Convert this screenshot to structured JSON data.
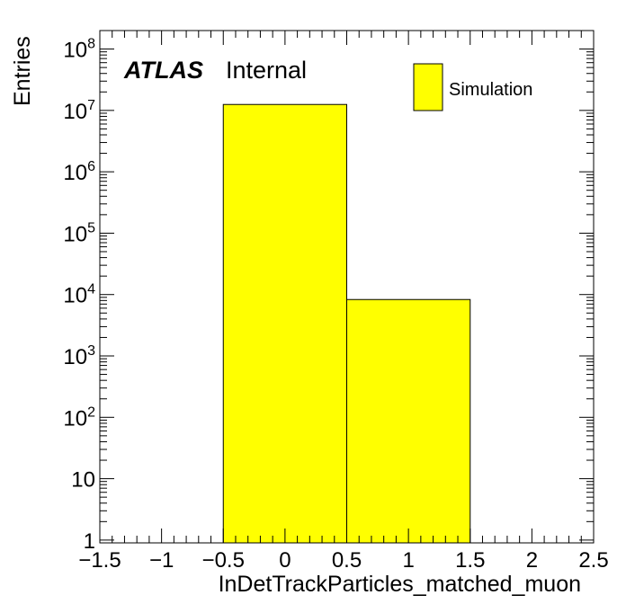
{
  "chart_data": {
    "type": "bar",
    "histogram": true,
    "bins": [
      {
        "low": -0.5,
        "high": 0.5,
        "value": 12500000
      },
      {
        "low": 0.5,
        "high": 1.5,
        "value": 8300
      }
    ],
    "xlabel": "InDetTrackParticles_matched_muon",
    "ylabel": "Entries",
    "xlim": [
      -1.5,
      2.5
    ],
    "ylim": [
      0.9,
      200000000
    ],
    "yscale": "log",
    "xticks": [
      -1.5,
      -1,
      -0.5,
      0,
      0.5,
      1,
      1.5,
      2,
      2.5
    ],
    "xtick_labels": [
      "−1.5",
      "−1",
      "−0.5",
      "0",
      "0.5",
      "1",
      "1.5",
      "2",
      "2.5"
    ],
    "yticks": [
      {
        "value": 1,
        "base": "1",
        "exp": ""
      },
      {
        "value": 10,
        "base": "10",
        "exp": ""
      },
      {
        "value": 100,
        "base": "10",
        "exp": "2"
      },
      {
        "value": 1000,
        "base": "10",
        "exp": "3"
      },
      {
        "value": 10000,
        "base": "10",
        "exp": "4"
      },
      {
        "value": 100000,
        "base": "10",
        "exp": "5"
      },
      {
        "value": 1000000,
        "base": "10",
        "exp": "6"
      },
      {
        "value": 10000000,
        "base": "10",
        "exp": "7"
      },
      {
        "value": 100000000,
        "base": "10",
        "exp": "8"
      }
    ],
    "grid": false,
    "legend": {
      "placement": "top-right",
      "entries": [
        {
          "label": "Simulation",
          "color": "#ffff00"
        }
      ]
    },
    "annotation": {
      "bold": "ATLAS",
      "normal": "Internal"
    },
    "colors": {
      "fill": "#ffff00",
      "line": "#000000"
    }
  }
}
